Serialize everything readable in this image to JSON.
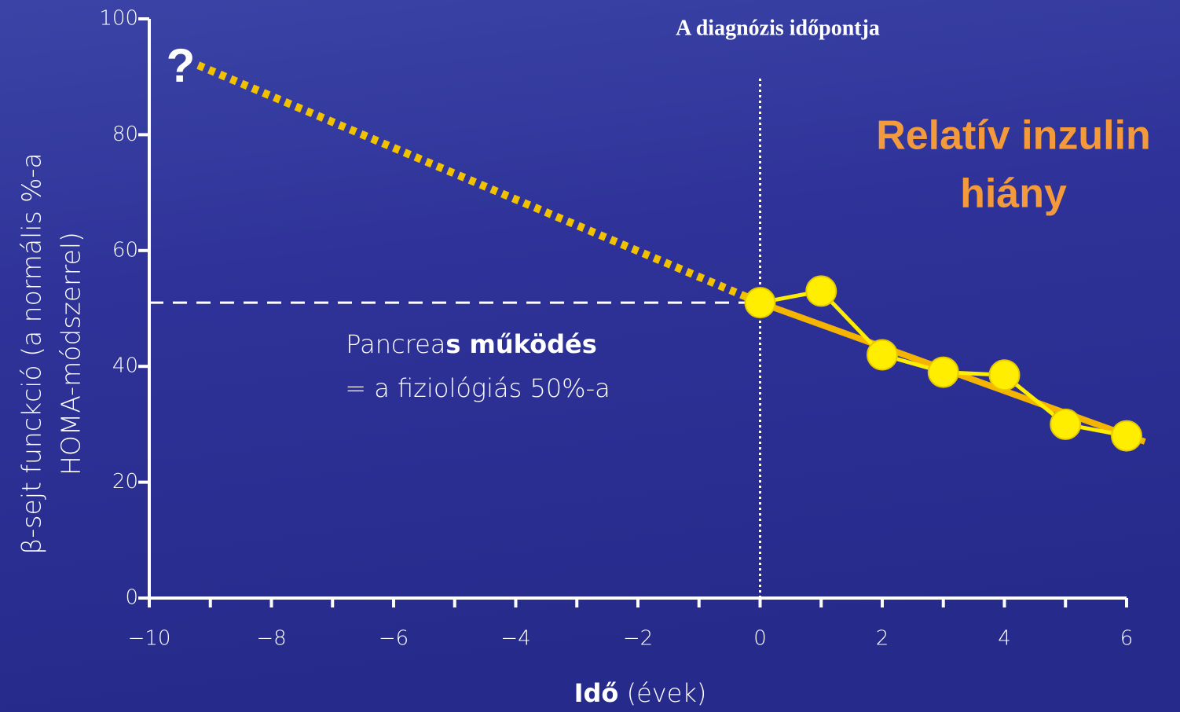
{
  "chart_data": {
    "type": "line",
    "title": "A diagnózis időpontja",
    "headline": [
      "Relatív inzulin",
      "hiány"
    ],
    "ylabel": [
      "β-sejt funckció (a normális %-a",
      "HOMA-módszerrel)"
    ],
    "xlabel": [
      "Idő",
      " (évek)"
    ],
    "note": [
      "Pancrea",
      "s működés",
      "= a fiziológiás 50%-a"
    ],
    "question": "?",
    "xlim": [
      -10,
      6
    ],
    "ylim": [
      0,
      100
    ],
    "xticks": [
      {
        "value": -10,
        "label": "−10"
      },
      {
        "value": -8,
        "label": "−8"
      },
      {
        "value": -6,
        "label": "−6"
      },
      {
        "value": -4,
        "label": "−4"
      },
      {
        "value": -2,
        "label": "−2"
      },
      0,
      2,
      4,
      6
    ],
    "xminorticks": [
      -9,
      -7,
      -5,
      -3,
      -1,
      1,
      3,
      5
    ],
    "yticks": [
      0,
      20,
      40,
      60,
      80,
      100
    ],
    "reference_y": 51,
    "diagnosis_x": 0,
    "diagnosis_top": 90,
    "series": [
      {
        "style": "dotted",
        "color": "#f2c200",
        "x": [
          -9.2,
          0
        ],
        "values": [
          92,
          51
        ]
      },
      {
        "style": "trend",
        "color": "#f5b400",
        "x": [
          0,
          6.3
        ],
        "values": [
          51,
          27
        ]
      },
      {
        "style": "points",
        "color": "#ffee00",
        "x": [
          0,
          1,
          2,
          3,
          4,
          5,
          6
        ],
        "values": [
          51,
          53,
          42,
          39,
          38.5,
          30,
          28
        ]
      }
    ]
  }
}
